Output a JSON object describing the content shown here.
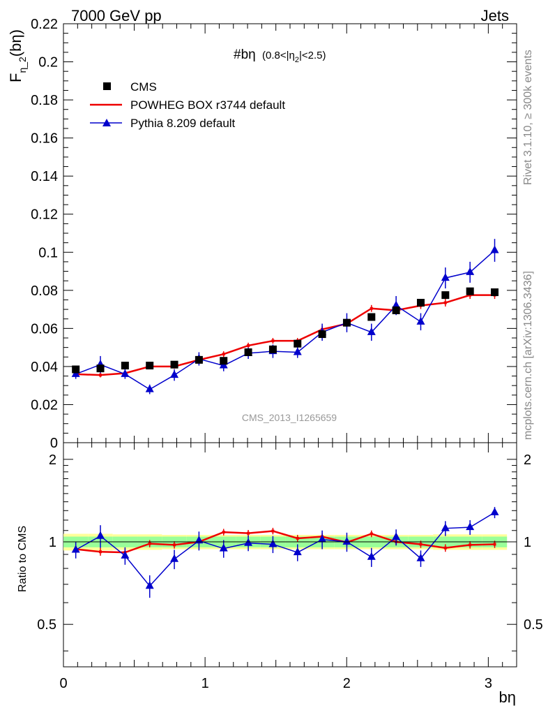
{
  "header": {
    "left": "7000 GeV pp",
    "right": "Jets",
    "side_top": "Rivet 3.1.10, ≥ 300k events",
    "side_bottom": "mcplots.cern.ch [arXiv:1306.3436]"
  },
  "chart_data": {
    "type": "scatter",
    "title": "#bη",
    "title_sub": "(0.8<|η",
    "title_sub_idx": "2",
    "title_sub_end": "|<2.5)",
    "watermark": "CMS_2013_I1265659",
    "ylabel_main": "F",
    "ylabel_sub": "η_2",
    "ylabel_tail": "(bη)",
    "ylabel_ratio": "Ratio to CMS",
    "xlabel": "bη",
    "xlim": [
      0,
      3.2
    ],
    "ylim_main": [
      0,
      0.22
    ],
    "ylim_ratio": [
      0.35,
      2.3
    ],
    "xticks": [
      "0",
      "1",
      "2",
      "3"
    ],
    "yticks_main": [
      "0",
      "0.02",
      "0.04",
      "0.06",
      "0.08",
      "0.1",
      "0.12",
      "0.14",
      "0.16",
      "0.18",
      "0.2",
      "0.22"
    ],
    "yticks_ratio": [
      "0.5",
      "1",
      "2"
    ],
    "legend": {
      "position": "top-left",
      "entries": [
        "CMS",
        "POWHEG BOX r3744 default",
        "Pythia 8.209 default"
      ]
    },
    "x": [
      0.087,
      0.261,
      0.435,
      0.609,
      0.783,
      0.957,
      1.131,
      1.305,
      1.479,
      1.653,
      1.827,
      2.001,
      2.175,
      2.349,
      2.523,
      2.697,
      2.871,
      3.045
    ],
    "series": [
      {
        "name": "CMS",
        "color": "#000000",
        "values": [
          0.0385,
          0.039,
          0.0405,
          0.0405,
          0.041,
          0.0435,
          0.043,
          0.0475,
          0.049,
          0.052,
          0.057,
          0.063,
          0.066,
          0.0695,
          0.0735,
          0.0775,
          0.0795,
          0.079
        ],
        "errors": [
          0.001,
          0.001,
          0.001,
          0.001,
          0.001,
          0.001,
          0.001,
          0.001,
          0.001,
          0.001,
          0.001,
          0.0015,
          0.0015,
          0.0015,
          0.0015,
          0.0015,
          0.0015,
          0.0015
        ]
      },
      {
        "name": "POWHEG BOX r3744 default",
        "color": "#ee0000",
        "values": [
          0.036,
          0.0355,
          0.0365,
          0.04,
          0.04,
          0.0435,
          0.0465,
          0.051,
          0.0535,
          0.0535,
          0.0595,
          0.0625,
          0.0705,
          0.0695,
          0.072,
          0.0735,
          0.0775,
          0.0775
        ],
        "errors": [
          0.0012,
          0.0012,
          0.0012,
          0.0012,
          0.0012,
          0.0015,
          0.0015,
          0.0015,
          0.0015,
          0.0015,
          0.0018,
          0.0018,
          0.0018,
          0.0018,
          0.0018,
          0.002,
          0.002,
          0.002
        ],
        "ratio": [
          0.94,
          0.92,
          0.915,
          0.985,
          0.975,
          1.0,
          1.085,
          1.075,
          1.095,
          1.03,
          1.045,
          0.995,
          1.07,
          1.0,
          0.98,
          0.95,
          0.975,
          0.98
        ],
        "ratio_errors": [
          0.03,
          0.03,
          0.03,
          0.03,
          0.03,
          0.03,
          0.03,
          0.03,
          0.03,
          0.03,
          0.03,
          0.03,
          0.03,
          0.03,
          0.03,
          0.03,
          0.03,
          0.03
        ]
      },
      {
        "name": "Pythia 8.209 default",
        "color": "#0000cc",
        "values": [
          0.036,
          0.041,
          0.036,
          0.028,
          0.0355,
          0.044,
          0.0405,
          0.047,
          0.048,
          0.0475,
          0.058,
          0.063,
          0.058,
          0.072,
          0.0635,
          0.0865,
          0.0895,
          0.101
        ],
        "errors": [
          0.0025,
          0.0045,
          0.0025,
          0.0025,
          0.003,
          0.0035,
          0.003,
          0.003,
          0.0035,
          0.003,
          0.0045,
          0.005,
          0.0045,
          0.005,
          0.0045,
          0.0055,
          0.0055,
          0.006
        ],
        "ratio": [
          0.935,
          1.05,
          0.89,
          0.69,
          0.865,
          1.01,
          0.945,
          0.99,
          0.98,
          0.915,
          1.02,
          1.0,
          0.88,
          1.04,
          0.87,
          1.12,
          1.13,
          1.28
        ],
        "ratio_errors": [
          0.065,
          0.1,
          0.065,
          0.065,
          0.07,
          0.08,
          0.07,
          0.065,
          0.07,
          0.065,
          0.08,
          0.08,
          0.07,
          0.07,
          0.06,
          0.07,
          0.07,
          0.06
        ]
      }
    ],
    "ratio_band_green": [
      0.045,
      0.045,
      0.045,
      0.045,
      0.045,
      0.045,
      0.045,
      0.045,
      0.045,
      0.045,
      0.045,
      0.045,
      0.045,
      0.045,
      0.045,
      0.045,
      0.045,
      0.045
    ],
    "ratio_band_yellow": [
      0.07,
      0.07,
      0.065,
      0.065,
      0.06,
      0.06,
      0.06,
      0.06,
      0.06,
      0.06,
      0.06,
      0.06,
      0.06,
      0.06,
      0.06,
      0.065,
      0.065,
      0.065
    ]
  }
}
